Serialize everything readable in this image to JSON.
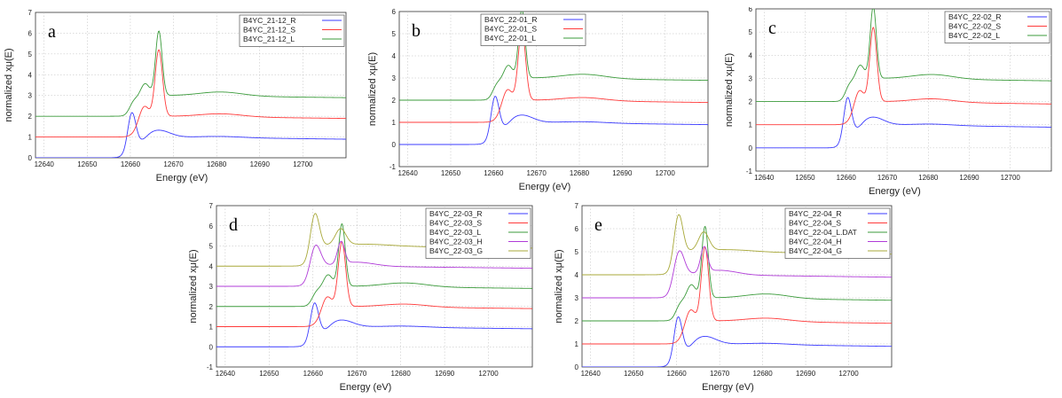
{
  "chart_data": [
    {
      "type": "line",
      "panel_label": "a",
      "xlabel": "Energy    (eV)",
      "ylabel": "normalized xμ(E)",
      "xlim": [
        12638,
        12710
      ],
      "ylim": [
        0,
        7
      ],
      "xticks": [
        12640,
        12650,
        12660,
        12670,
        12680,
        12690,
        12700
      ],
      "yticks": [
        0,
        1,
        2,
        3,
        4,
        5,
        6,
        7
      ],
      "grid": true,
      "legend_position": "top-right",
      "series": [
        {
          "name": "B4YC_21-12_R",
          "color": "#3b3bff",
          "offset": 0,
          "shape": "R"
        },
        {
          "name": "B4YC_21-12_S",
          "color": "#ff3b3b",
          "offset": 1,
          "shape": "S"
        },
        {
          "name": "B4YC_21-12_L",
          "color": "#3b9b3b",
          "offset": 2,
          "shape": "L"
        }
      ]
    },
    {
      "type": "line",
      "panel_label": "b",
      "xlabel": "Energy    (eV)",
      "ylabel": "normalized xμ(E)",
      "xlim": [
        12638,
        12710
      ],
      "ylim": [
        -1,
        6
      ],
      "xticks": [
        12640,
        12650,
        12660,
        12670,
        12680,
        12690,
        12700
      ],
      "yticks": [
        -1,
        0,
        1,
        2,
        3,
        4,
        5,
        6
      ],
      "grid": true,
      "legend_position": "top-left",
      "series": [
        {
          "name": "B4YC_22-01_R",
          "color": "#3b3bff",
          "offset": 0,
          "shape": "R"
        },
        {
          "name": "B4YC_22-01_S",
          "color": "#ff3b3b",
          "offset": 1,
          "shape": "S"
        },
        {
          "name": "B4YC_22-01_L",
          "color": "#3b9b3b",
          "offset": 2,
          "shape": "L"
        }
      ]
    },
    {
      "type": "line",
      "panel_label": "c",
      "xlabel": "Energy    (eV)",
      "ylabel": "normalized xμ(E)",
      "xlim": [
        12638,
        12710
      ],
      "ylim": [
        -1,
        6
      ],
      "xticks": [
        12640,
        12650,
        12660,
        12670,
        12680,
        12690,
        12700
      ],
      "yticks": [
        -1,
        0,
        1,
        2,
        3,
        4,
        5,
        6
      ],
      "grid": true,
      "legend_position": "top-right",
      "series": [
        {
          "name": "B4YC_22-02_R",
          "color": "#3b3bff",
          "offset": 0,
          "shape": "R"
        },
        {
          "name": "B4YC_22-02_S",
          "color": "#ff3b3b",
          "offset": 1,
          "shape": "S"
        },
        {
          "name": "B4YC_22-02_L",
          "color": "#3b9b3b",
          "offset": 2,
          "shape": "L"
        }
      ]
    },
    {
      "type": "line",
      "panel_label": "d",
      "xlabel": "Energy    (eV)",
      "ylabel": "normalized xμ(E)",
      "xlim": [
        12638,
        12710
      ],
      "ylim": [
        -1,
        7
      ],
      "xticks": [
        12640,
        12650,
        12660,
        12670,
        12680,
        12690,
        12700
      ],
      "yticks": [
        -1,
        0,
        1,
        2,
        3,
        4,
        5,
        6,
        7
      ],
      "grid": true,
      "legend_position": "top-right",
      "series": [
        {
          "name": "B4YC_22-03_R",
          "color": "#3b3bff",
          "offset": 0,
          "shape": "R"
        },
        {
          "name": "B4YC_22-03_S",
          "color": "#ff3b3b",
          "offset": 1,
          "shape": "S"
        },
        {
          "name": "B4YC_22-03_L",
          "color": "#3b9b3b",
          "offset": 2,
          "shape": "L"
        },
        {
          "name": "B4YC_22-03_H",
          "color": "#b03bd8",
          "offset": 3,
          "shape": "H"
        },
        {
          "name": "B4YC_22-03_G",
          "color": "#a8a838",
          "offset": 4,
          "shape": "G"
        }
      ]
    },
    {
      "type": "line",
      "panel_label": "e",
      "xlabel": "Energy    (eV)",
      "ylabel": "normalized xμ(E)",
      "xlim": [
        12638,
        12710
      ],
      "ylim": [
        0,
        7
      ],
      "xticks": [
        12640,
        12650,
        12660,
        12670,
        12680,
        12690,
        12700
      ],
      "yticks": [
        0,
        1,
        2,
        3,
        4,
        5,
        6,
        7
      ],
      "grid": true,
      "legend_position": "top-right",
      "series": [
        {
          "name": "B4YC_22-04_R",
          "color": "#3b3bff",
          "offset": 0,
          "shape": "R"
        },
        {
          "name": "B4YC_22-04_S",
          "color": "#ff3b3b",
          "offset": 1,
          "shape": "S"
        },
        {
          "name": "B4YC_22-04_L.DAT",
          "color": "#3b9b3b",
          "offset": 2,
          "shape": "L"
        },
        {
          "name": "B4YC_22-04_H",
          "color": "#b03bd8",
          "offset": 3,
          "shape": "H"
        },
        {
          "name": "B4YC_22-04_G",
          "color": "#a8a838",
          "offset": 4,
          "shape": "G"
        }
      ]
    }
  ]
}
